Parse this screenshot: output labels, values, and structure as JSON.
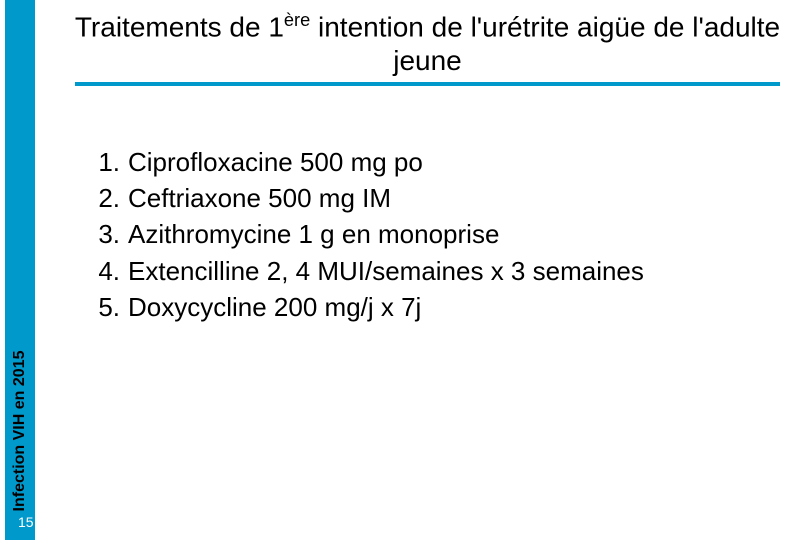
{
  "sidebar": {
    "label": "Infection VIH en 2015",
    "page_number": "15",
    "bg_color": "#0099cc"
  },
  "title": {
    "pre": "Traitements de 1",
    "sup": "ère",
    "post": " intention de l'urétrite aigüe de l'adulte jeune",
    "underline_color": "#0099cc",
    "fontsize": 28
  },
  "list": {
    "fontsize": 26,
    "items": [
      {
        "n": "1.",
        "t": "Ciprofloxacine 500 mg po"
      },
      {
        "n": "2.",
        "t": "Ceftriaxone 500 mg IM"
      },
      {
        "n": "3.",
        "t": "Azithromycine 1 g en monoprise"
      },
      {
        "n": "4.",
        "t": "Extencilline 2, 4 MUI/semaines x 3 semaines"
      },
      {
        "n": "5.",
        "t": "Doxycycline 200 mg/j x 7j"
      }
    ]
  }
}
